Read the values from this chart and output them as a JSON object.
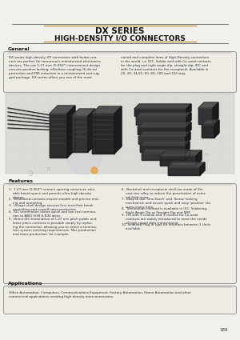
{
  "title_line1": "DX SERIES",
  "title_line2": "HIGH-DENSITY I/O CONNECTORS",
  "page_bg": "#f2f0eb",
  "section_general": "General",
  "general_left": "DX series high-density I/O connectors with below con-\nnect are perfect for tomorrow's miniaturized electronics\ndevices. The use 1.27 mm (0.050\") interconnect design\nensures positive locking, effortless coupling, Hi-de-tal\nprotection and EMI reduction in a miniaturized and rug-\nged package. DX series offers you one of the most",
  "general_right": "varied and complete lines of High-Density connectors\nin the world, i.e. IDC, Solder and with Co-axial contacts\nfor the plug and right angle dip, straight dip, IDC and\nwith Co-axial contacts for the receptacle. Available in\n20, 26, 34,50, 60, 80, 100 and 152 way.",
  "section_features": "Features",
  "features_left": [
    "1.  1.27 mm (0.050\") contact spacing conserves valu-\n    able board space and permits ultra-high density\n    design.",
    "2.  Bifurcated contacts ensure smooth and precise mat-\n    ing and unmating.",
    "3.  Unique shell design assures first mate/last break\n    grounding and overall noise protection.",
    "4.  IDC termination allows quick and low cost termina-\n    tion to AWG 0/28 & B30 wires.",
    "5.  Direct IDC termination of 1.27 mm pitch public and\n    loose piece contacts is possible simply by replac-\n    ing the connector, allowing you to select a termina-\n    tion system meeting requirements. Mas production\n    and mass production, for example."
  ],
  "features_right": [
    "6.  Backshell and receptacle shell are made of Die-\n    cast zinc alloy to reduce the penetration of exter-\n    nal field noise.",
    "7.  Easy to use 'One-Touch' and 'Screw' locking\n    mechanism and assure quick and easy 'positive' clo-\n    sures every time.",
    "8.  Termination method is available in IDC, Soldering,\n    Right Angle Dip or Straight Dip and SMT.",
    "9.  DX with 3 coaxial and 3 cavities for Co-axial\n    contacts are widely introduced to meet the needs\n    of high speed data transmission.",
    "10. Shielded Plug-in type for interface between 2 Units\n    available."
  ],
  "section_applications": "Applications",
  "applications_text": "Office Automation, Computers, Communications Equipment, Factory Automation, Home Automation and other\ncommercial applications needing high density interconnections.",
  "page_number": "189",
  "text_color": "#2a2a2a",
  "box_bg": "#eeebe4",
  "box_border": "#888888",
  "accent_line": "#b8963c",
  "dark_line": "#444444"
}
